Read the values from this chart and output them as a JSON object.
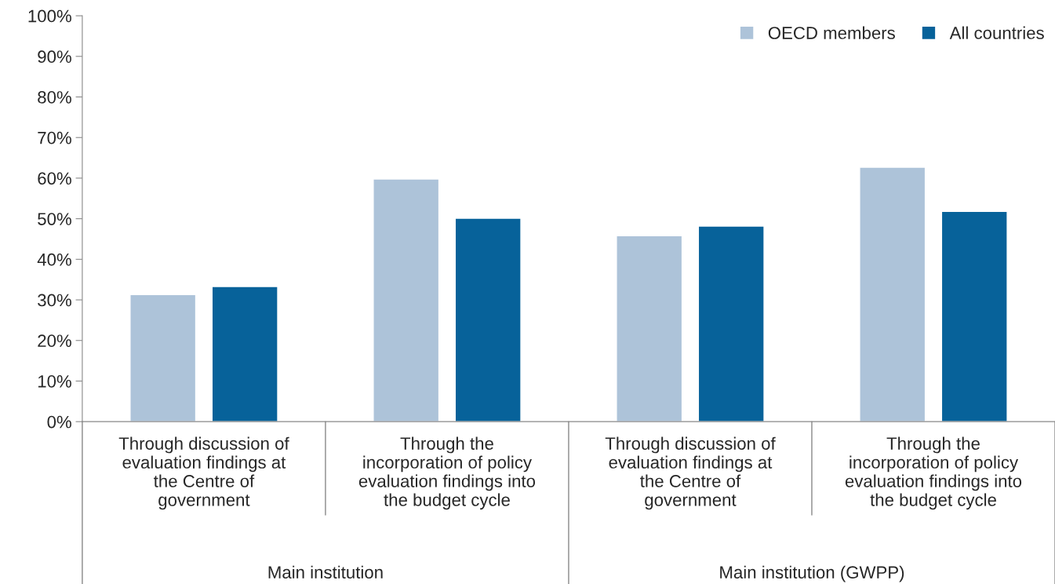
{
  "chart_data": {
    "type": "bar",
    "categories": [
      "Through discussion of\nevaluation findings at\nthe Centre of\ngovernment",
      "Through the\nincorporation of policy\nevaluation findings into\nthe budget cycle",
      "Through discussion of\nevaluation findings at\nthe Centre of\ngovernment",
      "Through the\nincorporation of policy\nevaluation findings into\nthe budget cycle"
    ],
    "series": [
      {
        "name": "OECD members",
        "color": "#adc3d9",
        "values": [
          31.3,
          59.8,
          45.8,
          62.7
        ]
      },
      {
        "name": "All countries",
        "color": "#07629a",
        "values": [
          33.3,
          50.1,
          48.2,
          51.8
        ]
      }
    ],
    "annotations": [
      "Main institution",
      "Main institution (GWPP)"
    ],
    "ylim": [
      0,
      100
    ],
    "yticks": [
      {
        "value": 0,
        "label": "0%"
      },
      {
        "value": 10,
        "label": "10%"
      },
      {
        "value": 20,
        "label": "20%"
      },
      {
        "value": 30,
        "label": "30%"
      },
      {
        "value": 40,
        "label": "40%"
      },
      {
        "value": 50,
        "label": "50%"
      },
      {
        "value": 60,
        "label": "60%"
      },
      {
        "value": 70,
        "label": "70%"
      },
      {
        "value": 80,
        "label": "80%"
      },
      {
        "value": 90,
        "label": "90%"
      },
      {
        "value": 100,
        "label": "100%"
      }
    ],
    "grid": false,
    "legend": "top right"
  }
}
